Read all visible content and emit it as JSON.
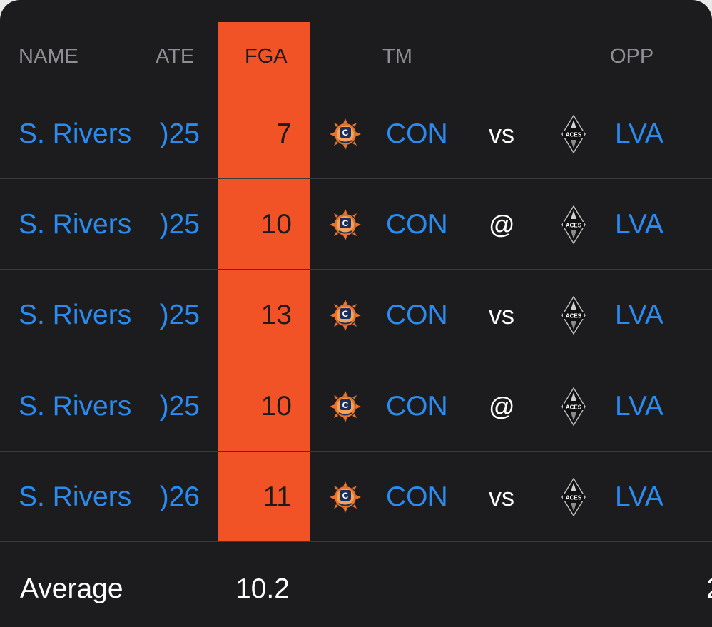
{
  "header": {
    "name": "NAME",
    "date": "ATE",
    "fga": "FGA",
    "tm": "TM",
    "opp": "OPP"
  },
  "rows": [
    {
      "name": "S. Rivers",
      "date": ")25",
      "fga": "7",
      "tm": "CON",
      "home_away": "vs",
      "opp": "LVA"
    },
    {
      "name": "S. Rivers",
      "date": ")25",
      "fga": "10",
      "tm": "CON",
      "home_away": "@",
      "opp": "LVA"
    },
    {
      "name": "S. Rivers",
      "date": ")25",
      "fga": "13",
      "tm": "CON",
      "home_away": "vs",
      "opp": "LVA"
    },
    {
      "name": "S. Rivers",
      "date": ")25",
      "fga": "10",
      "tm": "CON",
      "home_away": "@",
      "opp": "LVA"
    },
    {
      "name": "S. Rivers",
      "date": ")26",
      "fga": "11",
      "tm": "CON",
      "home_away": "vs",
      "opp": "LVA"
    }
  ],
  "footer": {
    "label": "Average",
    "fga_avg": "10.2",
    "cut_value": "2"
  },
  "logos": {
    "team_logo_text": "C",
    "opp_logo_text": "ACES"
  },
  "colors": {
    "background": "#1c1c1e",
    "highlight": "#f25326",
    "link": "#2a8cf0",
    "muted": "#8e8e93"
  }
}
